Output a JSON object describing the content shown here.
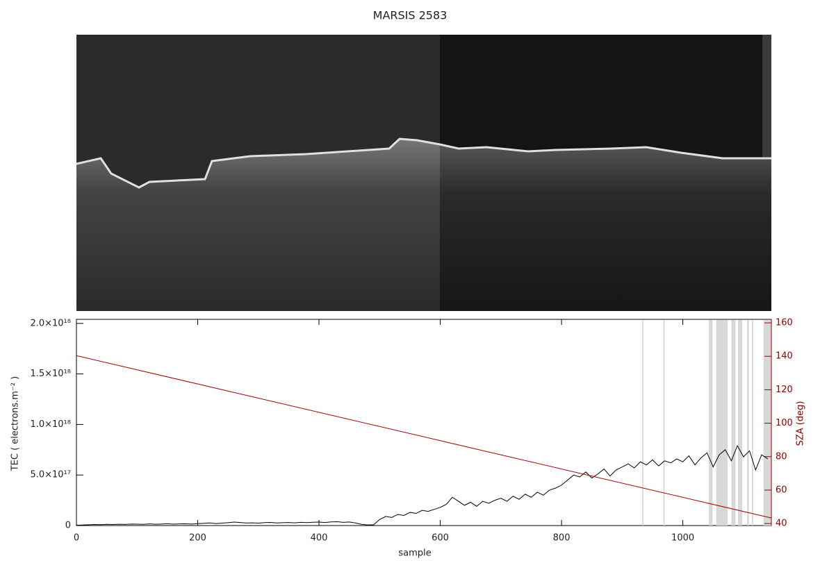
{
  "chart_data": {
    "type": "line",
    "title": "MARSIS 2583",
    "xlabel": "sample",
    "ylabel": "TEC ( electrons.m⁻² )",
    "y2label": "SZA (deg)",
    "xlim": [
      0,
      1146
    ],
    "xticks": [
      0,
      200,
      400,
      600,
      800,
      1000
    ],
    "ylim": [
      0,
      2.04e+18
    ],
    "yticks": [
      0,
      {
        "value": 5e+17,
        "label": "5.0×10¹⁷"
      },
      {
        "value": 1e+18,
        "label": "1.0×10¹⁸"
      },
      {
        "value": 1.5e+18,
        "label": "1.5×10¹⁸"
      },
      {
        "value": 2e+18,
        "label": "2.0×10¹⁸"
      }
    ],
    "y2lim": [
      38.8,
      162.1
    ],
    "y2ticks": [
      40,
      60,
      80,
      100,
      120,
      140,
      160
    ],
    "y2color": "#8b0000",
    "shaded_ranges": [
      [
        933,
        935
      ],
      [
        968,
        970
      ],
      [
        1043,
        1049
      ],
      [
        1055,
        1074
      ],
      [
        1080,
        1087
      ],
      [
        1091,
        1098
      ],
      [
        1106,
        1109
      ],
      [
        1114,
        1116
      ],
      [
        1133,
        1146
      ]
    ],
    "shade_color": "#d8d8d8",
    "series": [
      {
        "color": "#000000",
        "x": [
          0,
          10,
          20,
          30,
          40,
          50,
          60,
          70,
          80,
          90,
          100,
          110,
          120,
          130,
          140,
          150,
          160,
          170,
          180,
          190,
          200,
          210,
          220,
          230,
          240,
          250,
          260,
          270,
          280,
          290,
          300,
          310,
          320,
          330,
          340,
          350,
          360,
          370,
          380,
          390,
          400,
          410,
          420,
          430,
          440,
          450,
          460,
          470,
          480,
          490,
          500,
          510,
          520,
          530,
          540,
          550,
          560,
          570,
          580,
          590,
          600,
          610,
          620,
          630,
          640,
          650,
          660,
          670,
          680,
          690,
          700,
          710,
          720,
          730,
          740,
          750,
          760,
          770,
          780,
          790,
          800,
          810,
          820,
          830,
          840,
          850,
          860,
          870,
          880,
          890,
          900,
          910,
          920,
          930,
          940,
          950,
          960,
          970,
          980,
          990,
          1000,
          1010,
          1020,
          1030,
          1040,
          1050,
          1060,
          1070,
          1080,
          1090,
          1100,
          1110,
          1120,
          1130,
          1140
        ],
        "values": [
          3000000000000000.0,
          5000000000000000.0,
          8000000000000000.0,
          1e+16,
          9000000000000000.0,
          1.2e+16,
          1e+16,
          1.3e+16,
          1.1e+16,
          1.5e+16,
          1.4e+16,
          1.2e+16,
          1.6e+16,
          1.3e+16,
          1.5e+16,
          1.8e+16,
          1.4e+16,
          1.6e+16,
          1.7e+16,
          1.5e+16,
          1.9e+16,
          2.2e+16,
          2.6e+16,
          2e+16,
          2.4e+16,
          2.8e+16,
          3.4e+16,
          3e+16,
          2.5e+16,
          2.7e+16,
          2.4e+16,
          2.9e+16,
          3.1e+16,
          2.6e+16,
          2.8e+16,
          3e+16,
          2.7e+16,
          3.2e+16,
          2.9e+16,
          3.3e+16,
          3.4e+16,
          3e+16,
          3.6e+16,
          3.8e+16,
          3.2e+16,
          3.5e+16,
          2.6e+16,
          1.2e+16,
          6000000000000000.0,
          8000000000000000.0,
          6e+16,
          9e+16,
          8e+16,
          1.1e+17,
          1e+17,
          1.3e+17,
          1.2e+17,
          1.5e+17,
          1.4e+17,
          1.6e+17,
          1.8e+17,
          2.1e+17,
          2.8e+17,
          2.4e+17,
          2e+17,
          2.3e+17,
          1.9e+17,
          2.4e+17,
          2.2e+17,
          2.5e+17,
          2.7e+17,
          2.4e+17,
          2.9e+17,
          2.6e+17,
          3.1e+17,
          2.8e+17,
          3.3e+17,
          3e+17,
          3.5e+17,
          3.7e+17,
          4e+17,
          4.5e+17,
          5e+17,
          4.8e+17,
          5.3e+17,
          4.7e+17,
          5.1e+17,
          5.6e+17,
          4.9e+17,
          5.5e+17,
          5.8e+17,
          6.1e+17,
          5.7e+17,
          6.3e+17,
          6e+17,
          6.5e+17,
          5.9e+17,
          6.4e+17,
          6.2e+17,
          6.6e+17,
          6.3e+17,
          6.9e+17,
          6e+17,
          6.7e+17,
          7.2e+17,
          5.8e+17,
          7e+17,
          7.5e+17,
          6.4e+17,
          7.9e+17,
          6.8e+17,
          7.4e+17,
          5.5e+17,
          7e+17,
          6.6e+17
        ]
      },
      {
        "color": "#a00000",
        "axis": "y2",
        "x": [
          0,
          1146
        ],
        "values": [
          140.4,
          43.3
        ]
      }
    ]
  }
}
